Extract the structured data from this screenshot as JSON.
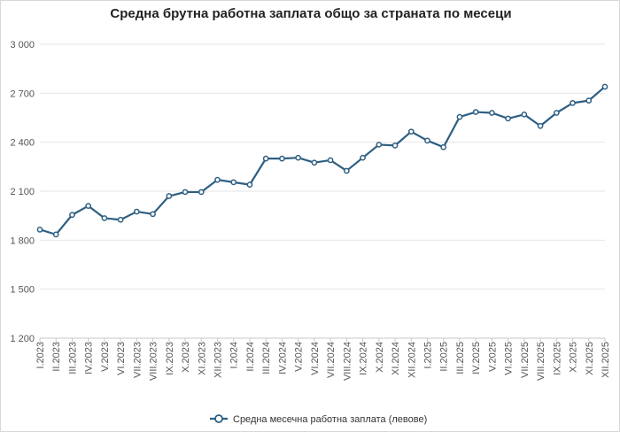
{
  "chart_data": {
    "type": "line",
    "title": "Средна брутна работна заплата общо за страната по месеци",
    "xlabel": "",
    "ylabel": "",
    "ylim": [
      1200,
      3000
    ],
    "yticks": [
      1200,
      1500,
      1800,
      2100,
      2400,
      2700,
      3000
    ],
    "ytick_labels": [
      "1 200",
      "1 500",
      "1 800",
      "2 100",
      "2 400",
      "2 700",
      "3 000"
    ],
    "grid": true,
    "legend_position": "bottom",
    "categories": [
      "I.2023",
      "II.2023",
      "III.2023",
      "IV.2023",
      "V.2023",
      "VI.2023",
      "VII.2023",
      "VIII.2023",
      "IX.2023",
      "X.2023",
      "XI.2023",
      "XII.2023",
      "I.2024",
      "II.2024",
      "III.2024",
      "IV.2024",
      "V.2024",
      "VI.2024",
      "VII.2024",
      "VIII.2024",
      "IX.2024",
      "X.2024",
      "XI.2024",
      "XII.2024",
      "I.2025",
      "II.2025",
      "III.2025",
      "IV.2025",
      "V.2025",
      "VI.2025",
      "VII.2025",
      "VIII.2025",
      "IX.2025",
      "X.2025",
      "XI.2025",
      "XII.2025"
    ],
    "series": [
      {
        "name": "Средна месечна работна заплата (левове)",
        "color": "#2e5f82",
        "values": [
          1865,
          1835,
          1955,
          2010,
          1935,
          1925,
          1975,
          1960,
          2070,
          2095,
          2095,
          2170,
          2155,
          2140,
          2300,
          2300,
          2305,
          2275,
          2290,
          2225,
          2305,
          2385,
          2380,
          2465,
          2410,
          2370,
          2555,
          2585,
          2580,
          2545,
          2570,
          2500,
          2580,
          2640,
          2655,
          2740
        ]
      }
    ]
  }
}
